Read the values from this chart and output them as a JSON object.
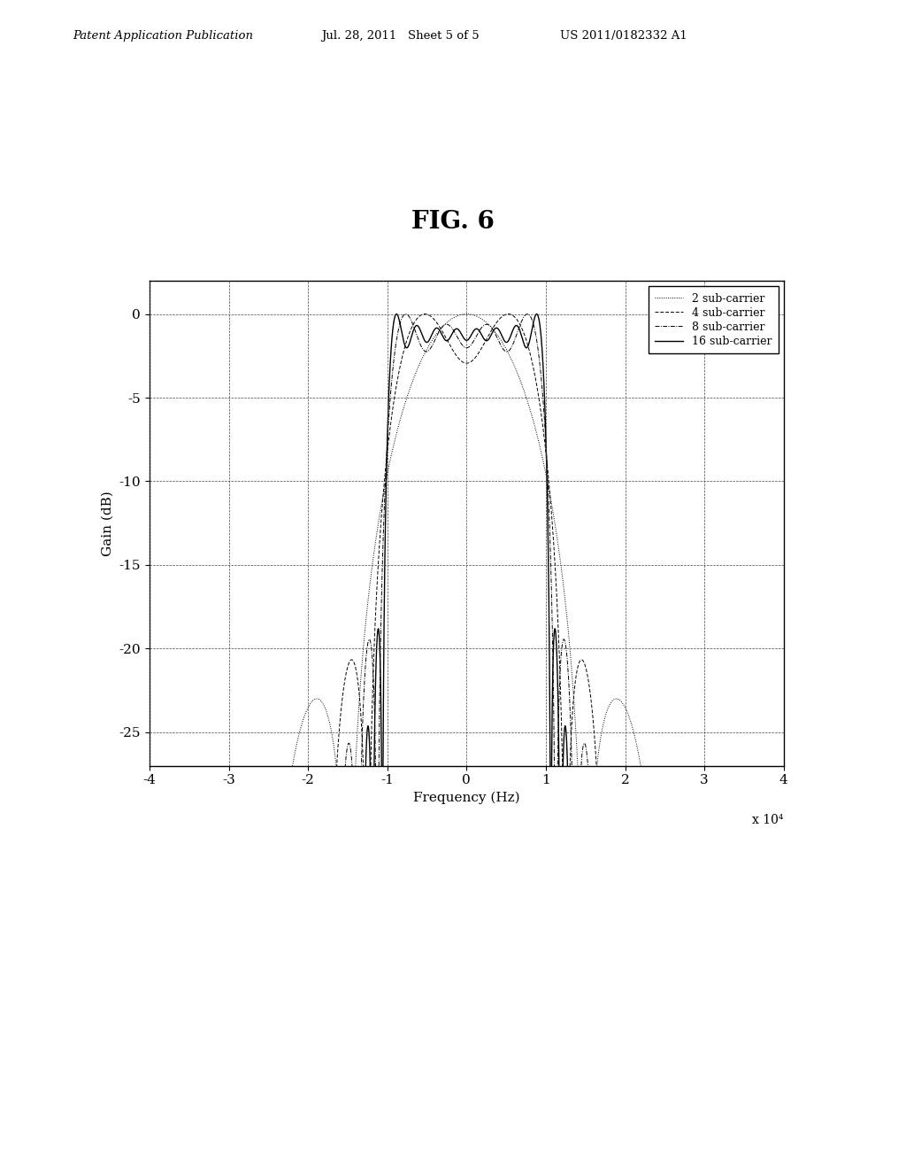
{
  "title": "FIG. 6",
  "xlabel": "Frequency (Hz)",
  "ylabel": "Gain (dB)",
  "xlim": [
    -40000.0,
    40000.0
  ],
  "ylim": [
    -27,
    2
  ],
  "yticks": [
    0,
    -5,
    -10,
    -15,
    -20,
    -25
  ],
  "xticks": [
    -4,
    -3,
    -2,
    -1,
    0,
    1,
    2,
    3,
    4
  ],
  "xscale_label": "x 10⁴",
  "background_color": "#ffffff",
  "header_text": "Patent Application Publication",
  "header_date": "Jul. 28, 2011   Sheet 5 of 5",
  "header_patent": "US 2011/0182332 A1",
  "n_carriers": [
    2,
    4,
    8,
    16
  ],
  "bandwidth": 20000,
  "line_styles": [
    "dotted",
    "dashed",
    "dashdot",
    "solid"
  ],
  "line_colors": [
    "#000000",
    "#000000",
    "#000000",
    "#000000"
  ],
  "legend_labels": [
    "2 sub-carrier",
    "4 sub-carrier",
    "8 sub-carrier",
    "16 sub-carrier"
  ]
}
